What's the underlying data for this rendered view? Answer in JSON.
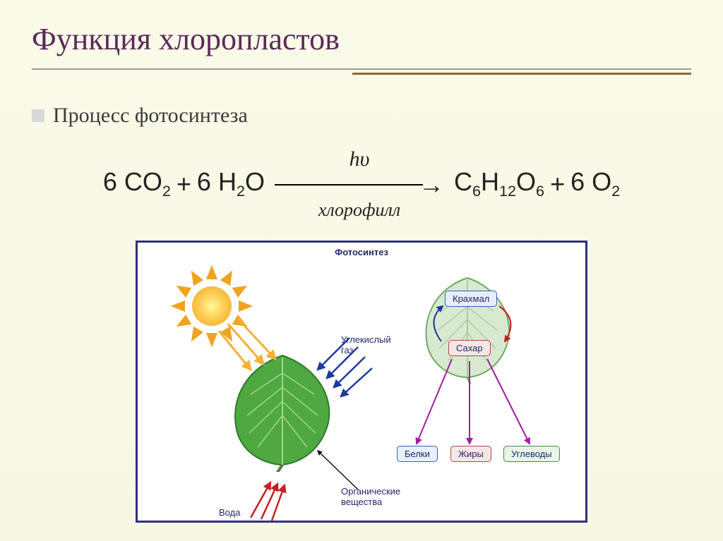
{
  "slide": {
    "title": "Функция хлоропластов",
    "title_color": "#5a2a5a",
    "title_fontsize": 44,
    "bullet": {
      "marker_color": "#d9d9d9",
      "text": "Процесс фотосинтеза",
      "text_color": "#3a3a3a",
      "fontsize": 30
    },
    "underline": {
      "line1_color": "#999999",
      "line2_color": "#8a6a37"
    },
    "equation": {
      "lhs_coeff1": "6",
      "lhs_species1": "CO",
      "lhs_sub1": "2",
      "plus1": "+",
      "lhs_coeff2": "6",
      "lhs_species2": "H",
      "lhs_sub2": "2",
      "lhs_species2b": "O",
      "arrow_top": "hυ",
      "arrow_bottom": "хлорофилл",
      "arrow_symbol": "→",
      "rhs_species1": "C",
      "rhs_sub1": "6",
      "rhs_species1b": "H",
      "rhs_sub1b": "12",
      "rhs_species1c": "O",
      "rhs_sub1c": "6",
      "plus2": "+",
      "rhs_coeff2": "6",
      "rhs_species2": "O",
      "rhs_sub2": "2",
      "fontsize": 36,
      "color": "#222222"
    }
  },
  "diagram": {
    "border_color": "#2e317d",
    "title": "Фотосинтез",
    "title_color": "#24276a",
    "sun": {
      "gradient": [
        "#fff89b",
        "#fdd15a",
        "#f1a31f"
      ],
      "ray_color": "#f1a31f",
      "num_rays": 12
    },
    "left_leaf": {
      "fill": "#4fa841",
      "vein_color": "#a5d58e",
      "edge_color": "#2e7a2b"
    },
    "right_leaf": {
      "fill": "#d7ead0",
      "edge_color": "#6fa85f",
      "vein_color": "#9ac28b"
    },
    "labels": {
      "co2": "Углекислый\nгаз",
      "water": "Вода",
      "organic": "Органические\nвещества",
      "starch": "Крахмал",
      "sugar": "Сахар",
      "proteins": "Белки",
      "fats": "Жиры",
      "carbs": "Углеводы"
    },
    "arrows": {
      "sun_color": "#f5b133",
      "co2_color": "#1b3aa0",
      "water_color": "#c62020",
      "organic_color": "#111111",
      "starch_to_sugar_color": "#c62020",
      "sugar_down_color": "#a020a0"
    },
    "product_colors": {
      "starch": {
        "border": "#3560c0",
        "bg": "#e6eefc",
        "text": "#24276a"
      },
      "sugar": {
        "border": "#b04848",
        "bg": "#f5e6e6",
        "text": "#24276a"
      },
      "proteins": {
        "border": "#3560c0",
        "bg": "#e8efff",
        "text": "#24276a"
      },
      "fats": {
        "border": "#b04848",
        "bg": "#f7e6e6",
        "text": "#24276a"
      },
      "carbs": {
        "border": "#3f8f3f",
        "bg": "#e8f5e8",
        "text": "#24276a"
      }
    }
  },
  "background_color": "#fafae8"
}
